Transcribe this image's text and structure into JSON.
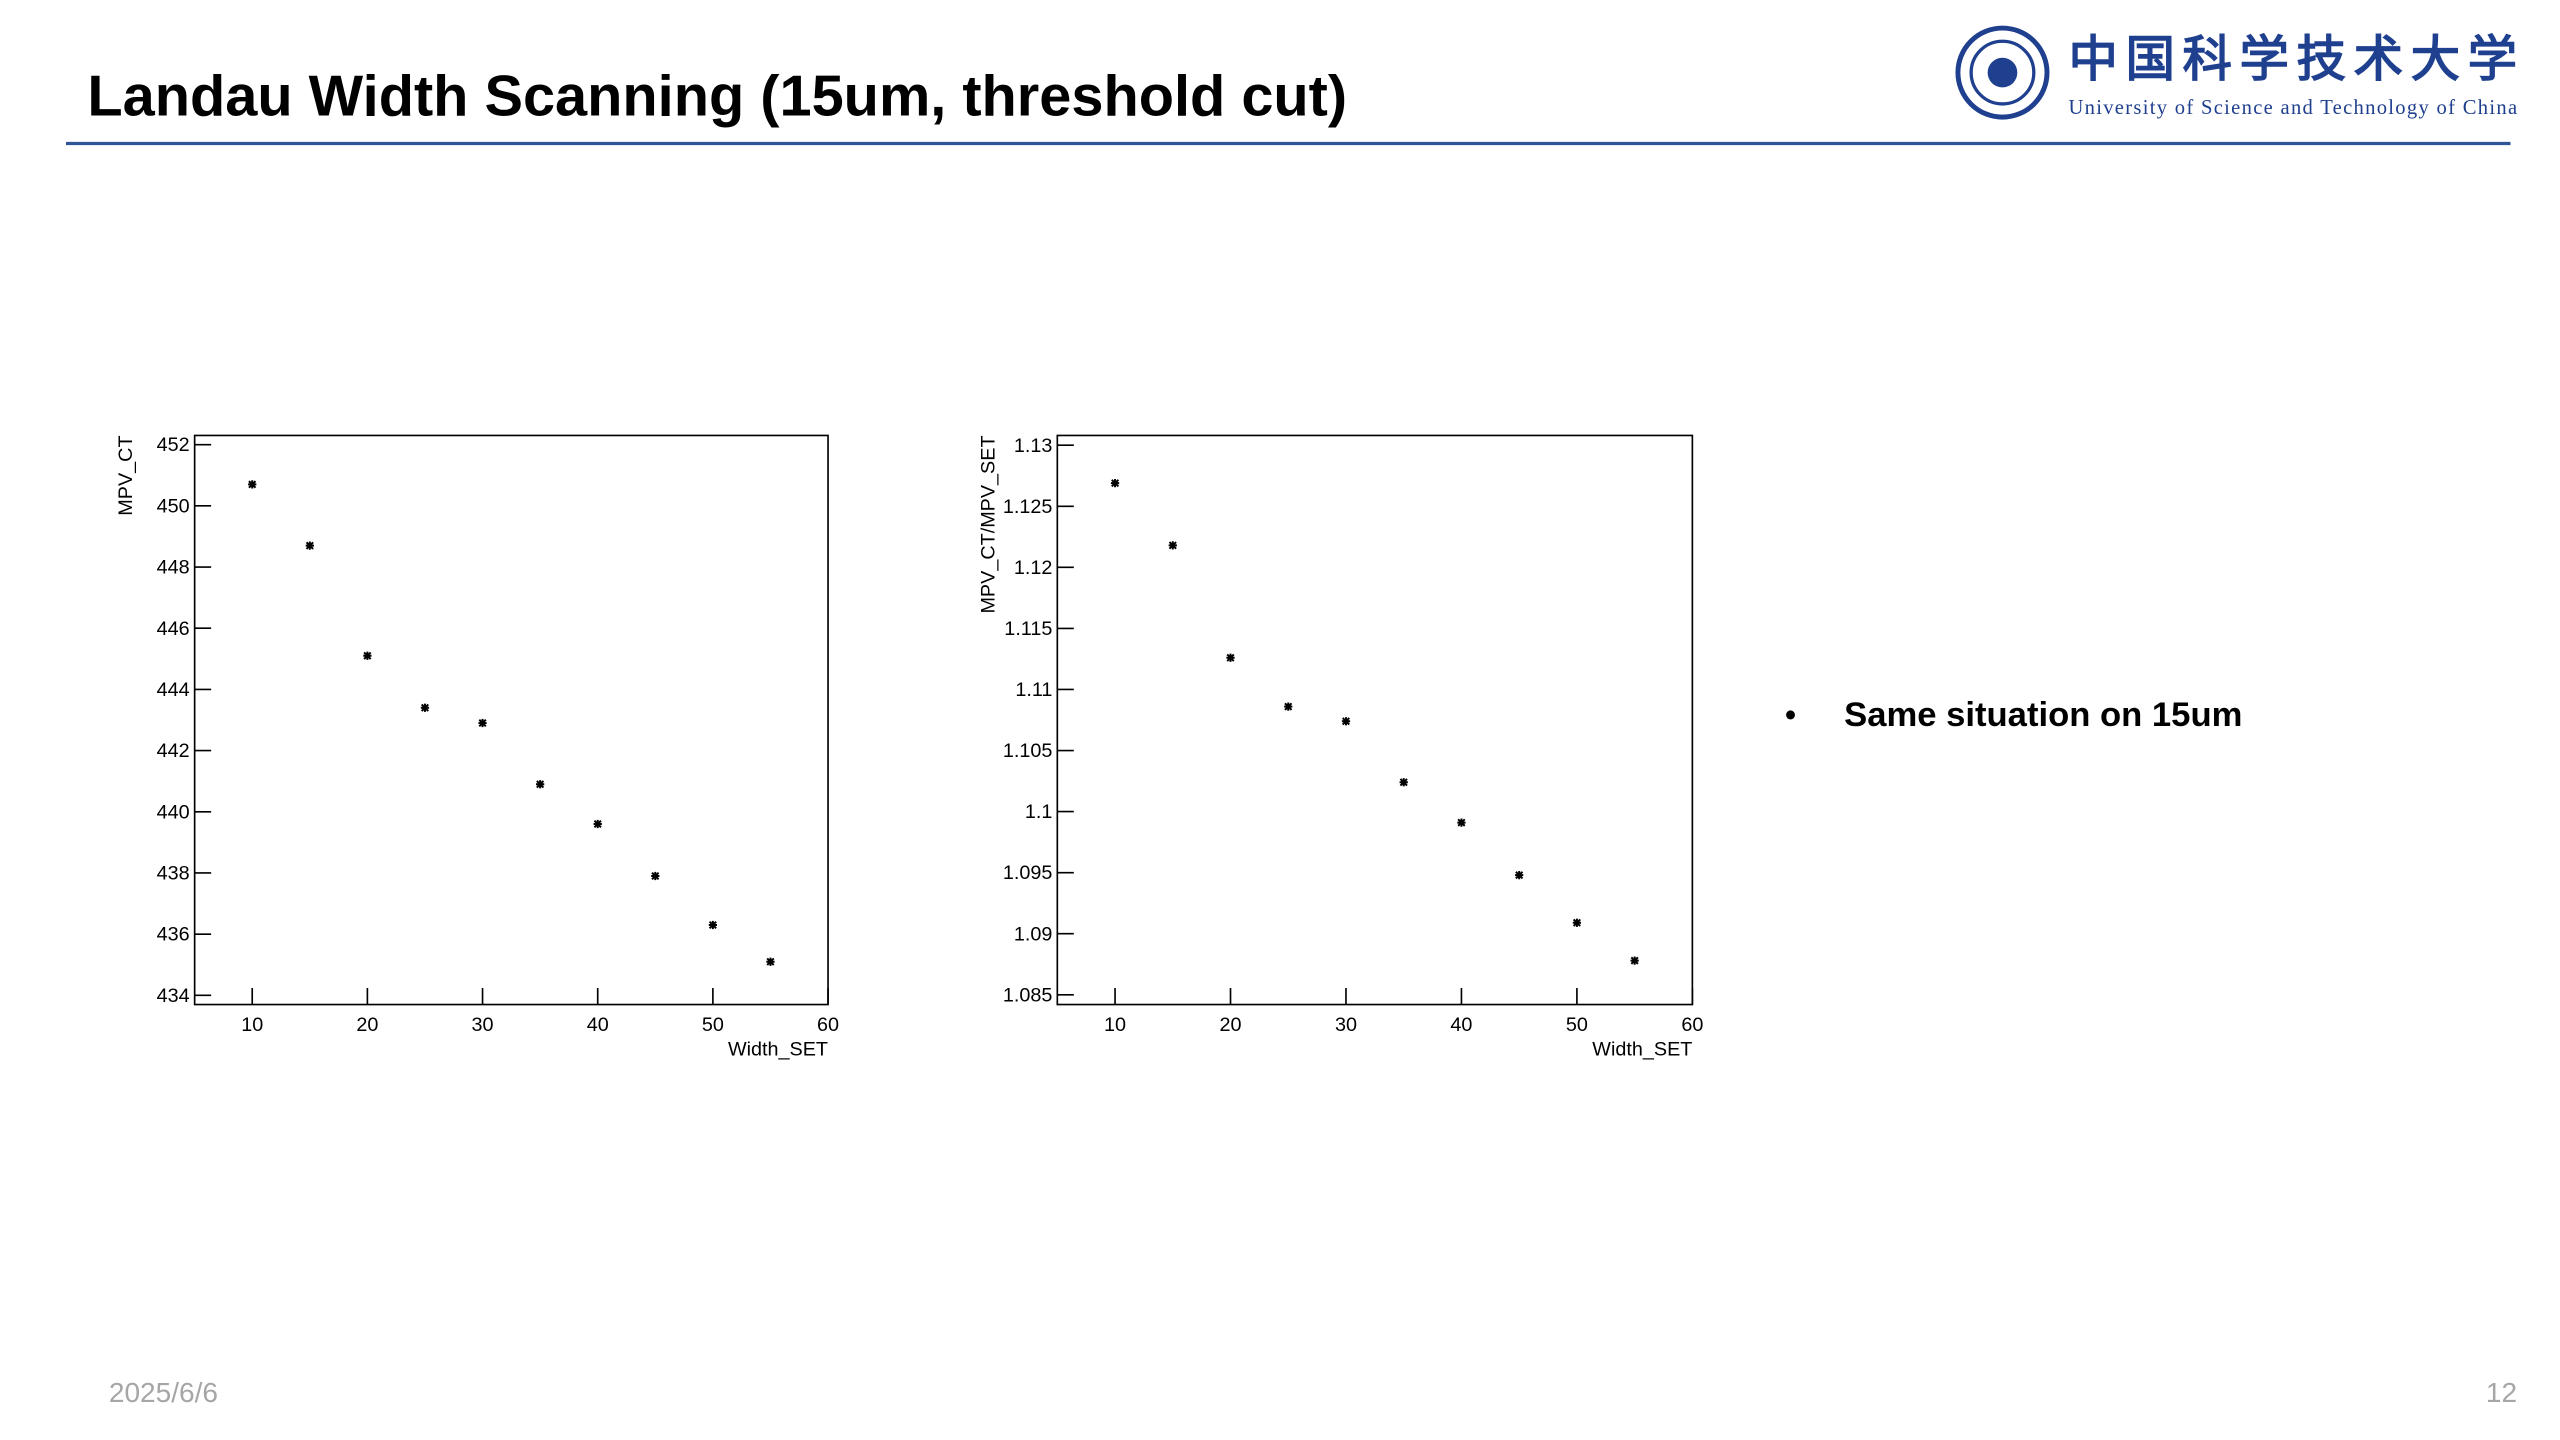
{
  "header": {
    "title": "Landau Width Scanning (15um, threshold cut)",
    "logo_cn": "中国科学技术大学",
    "logo_en": "University of Science and Technology of China"
  },
  "bullet": "Same situation on 15um",
  "footer": {
    "date": "2025/6/6",
    "page": "12"
  },
  "chart_data": [
    {
      "type": "scatter",
      "x_label": "Width_SET",
      "y_label": "MPV_CT",
      "x": [
        10,
        15,
        20,
        25,
        30,
        35,
        40,
        45,
        50,
        55
      ],
      "values": [
        450.7,
        448.7,
        445.1,
        443.4,
        442.9,
        440.9,
        439.6,
        437.9,
        436.3,
        435.1
      ],
      "color": "#000000",
      "xlim": [
        5,
        60
      ],
      "xticks": [
        10,
        20,
        30,
        40,
        50,
        60
      ],
      "ylim": [
        433.7,
        452.3
      ],
      "yticks": [
        434,
        436,
        438,
        440,
        442,
        444,
        446,
        448,
        450,
        452
      ]
    },
    {
      "type": "scatter",
      "x_label": "Width_SET",
      "y_label": "MPV_CT/MPV_SET",
      "x": [
        10,
        15,
        20,
        25,
        30,
        35,
        40,
        45,
        50,
        55
      ],
      "values": [
        1.1269,
        1.1218,
        1.1126,
        1.1086,
        1.1074,
        1.1024,
        1.0991,
        1.0948,
        1.0909,
        1.0878
      ],
      "color": "#000000",
      "xlim": [
        5,
        60
      ],
      "xticks": [
        10,
        20,
        30,
        40,
        50,
        60
      ],
      "ylim": [
        1.0842,
        1.1308
      ],
      "yticks": [
        1.085,
        1.09,
        1.095,
        1.1,
        1.105,
        1.11,
        1.115,
        1.12,
        1.125,
        1.13
      ]
    }
  ]
}
